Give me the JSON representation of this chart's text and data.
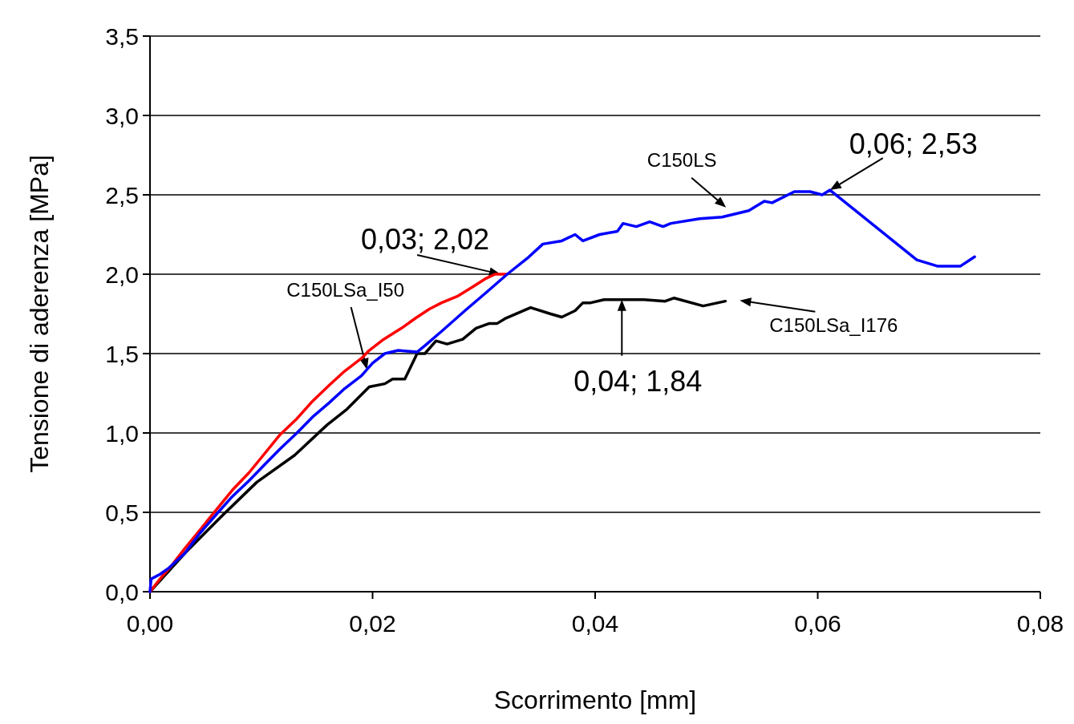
{
  "chart_data": {
    "type": "line",
    "xlabel": "Scorrimento [mm]",
    "ylabel": "Tensione di aderenza [MPa]",
    "xlim": [
      0,
      0.08
    ],
    "ylim": [
      0,
      3.5
    ],
    "xticks": [
      {
        "value": 0,
        "label": "0,00"
      },
      {
        "value": 0.02,
        "label": "0,02"
      },
      {
        "value": 0.04,
        "label": "0,04"
      },
      {
        "value": 0.06,
        "label": "0,06"
      },
      {
        "value": 0.08,
        "label": "0,08"
      }
    ],
    "yticks": [
      {
        "value": 0,
        "label": "0,0"
      },
      {
        "value": 0.5,
        "label": "0,5"
      },
      {
        "value": 1,
        "label": "1,0"
      },
      {
        "value": 1.5,
        "label": "1,5"
      },
      {
        "value": 2,
        "label": "2,0"
      },
      {
        "value": 2.5,
        "label": "2,5"
      },
      {
        "value": 3,
        "label": "3,0"
      },
      {
        "value": 3.5,
        "label": "3,5"
      }
    ],
    "grid": "y",
    "marker": "none",
    "line_style": "solid",
    "series": [
      {
        "name": "C150LSa_I176",
        "color": "#000000",
        "x": [
          0,
          0.0031,
          0.0065,
          0.0096,
          0.013,
          0.0159,
          0.0177,
          0.0197,
          0.0211,
          0.0218,
          0.0229,
          0.024,
          0.0247,
          0.0257,
          0.0267,
          0.0281,
          0.0293,
          0.0305,
          0.0312,
          0.0319,
          0.0342,
          0.036,
          0.037,
          0.0382,
          0.0389,
          0.0396,
          0.0408,
          0.0444,
          0.0463,
          0.0471,
          0.0497,
          0.0517
        ],
        "values": [
          0,
          0.24,
          0.48,
          0.69,
          0.86,
          1.05,
          1.15,
          1.29,
          1.31,
          1.34,
          1.34,
          1.5,
          1.5,
          1.58,
          1.56,
          1.59,
          1.66,
          1.69,
          1.69,
          1.72,
          1.79,
          1.75,
          1.73,
          1.77,
          1.82,
          1.82,
          1.84,
          1.84,
          1.83,
          1.85,
          1.8,
          1.83
        ]
      },
      {
        "name": "C150LSa_I50",
        "color": "#ff0000",
        "x": [
          0,
          0.0009,
          0.002,
          0.0031,
          0.0045,
          0.006,
          0.0074,
          0.0089,
          0.0103,
          0.0117,
          0.0132,
          0.0146,
          0.0161,
          0.0175,
          0.019,
          0.0197,
          0.021,
          0.0226,
          0.024,
          0.0251,
          0.0262,
          0.0276,
          0.029,
          0.0301,
          0.031,
          0.0321
        ],
        "values": [
          0,
          0.08,
          0.17,
          0.27,
          0.39,
          0.52,
          0.64,
          0.75,
          0.87,
          0.99,
          1.09,
          1.2,
          1.3,
          1.39,
          1.47,
          1.52,
          1.59,
          1.66,
          1.73,
          1.78,
          1.82,
          1.86,
          1.92,
          1.97,
          2,
          2
        ]
      },
      {
        "name": "C150LS",
        "color": "#0000ff",
        "x": [
          0,
          0.0001,
          0.0009,
          0.0017,
          0.0031,
          0.0045,
          0.006,
          0.0074,
          0.0089,
          0.0103,
          0.0117,
          0.0132,
          0.0146,
          0.0161,
          0.0175,
          0.019,
          0.02,
          0.0211,
          0.0223,
          0.024,
          0.0247,
          0.0262,
          0.0283,
          0.0303,
          0.0321,
          0.0339,
          0.0353,
          0.037,
          0.0382,
          0.0389,
          0.0404,
          0.042,
          0.0425,
          0.0437,
          0.0449,
          0.0461,
          0.0468,
          0.0494,
          0.0514,
          0.0538,
          0.0552,
          0.0559,
          0.0579,
          0.0593,
          0.0604,
          0.0611,
          0.0689,
          0.0708,
          0.0728,
          0.0741
        ],
        "values": [
          0,
          0.08,
          0.11,
          0.15,
          0.24,
          0.37,
          0.49,
          0.6,
          0.7,
          0.8,
          0.9,
          1,
          1.1,
          1.19,
          1.28,
          1.36,
          1.44,
          1.5,
          1.52,
          1.51,
          1.55,
          1.64,
          1.77,
          1.89,
          2,
          2.1,
          2.19,
          2.21,
          2.25,
          2.21,
          2.25,
          2.27,
          2.32,
          2.3,
          2.33,
          2.3,
          2.32,
          2.35,
          2.36,
          2.4,
          2.46,
          2.45,
          2.52,
          2.52,
          2.5,
          2.53,
          2.09,
          2.05,
          2.05,
          2.11
        ]
      }
    ],
    "annotations": [
      {
        "text": "0,03; 2,02",
        "x": 0.0315,
        "y": 2.0
      },
      {
        "text": "0,04; 1,84",
        "x": 0.0424,
        "y": 1.84
      },
      {
        "text": "0,06; 2,53",
        "x": 0.0611,
        "y": 2.53
      }
    ]
  }
}
